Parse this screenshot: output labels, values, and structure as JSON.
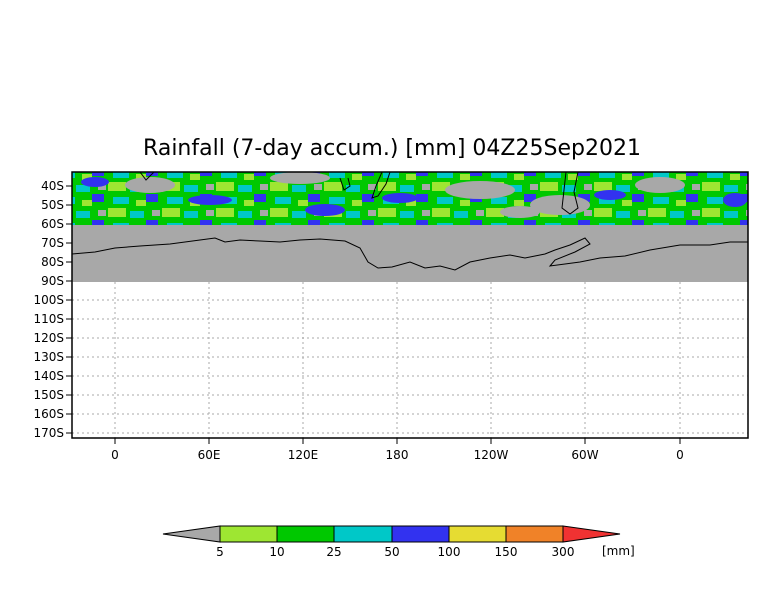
{
  "title": "Rainfall (7-day accum.) [mm] 04Z25Sep2021",
  "lat_labels": [
    "40S",
    "50S",
    "60S",
    "70S",
    "80S",
    "90S",
    "100S",
    "110S",
    "120S",
    "130S",
    "140S",
    "150S",
    "160S",
    "170S"
  ],
  "lon_labels": [
    "0",
    "60E",
    "120E",
    "180",
    "120W",
    "60W",
    "0"
  ],
  "legend": {
    "unit": "[mm]",
    "ticks": [
      "5",
      "10",
      "25",
      "50",
      "100",
      "150",
      "300"
    ],
    "colors": [
      "#a8a8a8",
      "#9ee632",
      "#00c800",
      "#00c8c8",
      "#3232f0",
      "#e6dc32",
      "#f08228",
      "#f03232"
    ]
  }
}
